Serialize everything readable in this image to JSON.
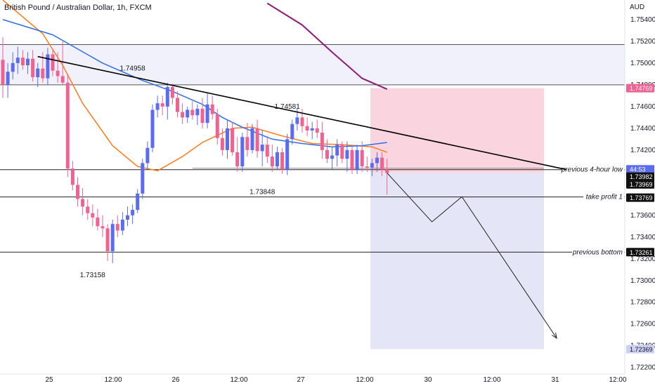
{
  "chart_data": {
    "type": "candlestick",
    "title": "British Pound / Australian Dollar, 1h, FXCM",
    "currency": "AUD",
    "ylim": [
      1.7214,
      1.7558
    ],
    "y_ticks": [
      "1.75400",
      "1.75200",
      "1.75000",
      "1.74800",
      "1.74600",
      "1.74400",
      "1.74200",
      "1.73600",
      "1.73400",
      "1.73200",
      "1.73000",
      "1.72800",
      "1.72600",
      "1.72400",
      "1.72200"
    ],
    "x_ticks": [
      "25",
      "12:00",
      "26",
      "12:00",
      "27",
      "12:00",
      "30",
      "12:00",
      "31",
      "12:00"
    ],
    "colors": {
      "up": "#5b6cf0",
      "down": "#f06292",
      "ma_fast": "#2f6fe6",
      "ma_slow": "#ff7a1a",
      "ma_long": "#8e1c7a",
      "trendline": "#000000",
      "stop_zone": "#f8c6d4",
      "target_zone": "#dcdcf6",
      "resistance_zone": "#e6e6f8"
    },
    "candles": [
      [
        1.7503,
        1.7524,
        1.7468,
        1.748
      ],
      [
        1.748,
        1.75,
        1.7468,
        1.7492
      ],
      [
        1.7492,
        1.751,
        1.7485,
        1.75
      ],
      [
        1.75,
        1.7515,
        1.749,
        1.7505
      ],
      [
        1.7505,
        1.7512,
        1.7494,
        1.7498
      ],
      [
        1.7498,
        1.751,
        1.749,
        1.7504
      ],
      [
        1.7504,
        1.7512,
        1.7483,
        1.7487
      ],
      [
        1.7487,
        1.75,
        1.7478,
        1.7495
      ],
      [
        1.7495,
        1.751,
        1.7482,
        1.7486
      ],
      [
        1.7486,
        1.7514,
        1.748,
        1.7508
      ],
      [
        1.7508,
        1.7512,
        1.7488,
        1.7493
      ],
      [
        1.7493,
        1.751,
        1.7482,
        1.7488
      ],
      [
        1.7488,
        1.752,
        1.748,
        1.7482
      ],
      [
        1.7482,
        1.749,
        1.7395,
        1.7403
      ],
      [
        1.7403,
        1.741,
        1.7383,
        1.7388
      ],
      [
        1.7388,
        1.7395,
        1.7368,
        1.7375
      ],
      [
        1.7375,
        1.7385,
        1.736,
        1.7368
      ],
      [
        1.7368,
        1.7375,
        1.7356,
        1.7362
      ],
      [
        1.7362,
        1.737,
        1.735,
        1.7358
      ],
      [
        1.7358,
        1.7366,
        1.7346,
        1.735
      ],
      [
        1.735,
        1.736,
        1.734,
        1.7348
      ],
      [
        1.7348,
        1.7352,
        1.7318,
        1.7327
      ],
      [
        1.7327,
        1.7356,
        1.7316,
        1.7352
      ],
      [
        1.7352,
        1.736,
        1.734,
        1.7346
      ],
      [
        1.7346,
        1.7363,
        1.7342,
        1.7356
      ],
      [
        1.7356,
        1.7368,
        1.735,
        1.736
      ],
      [
        1.736,
        1.737,
        1.7352,
        1.7365
      ],
      [
        1.7365,
        1.7384,
        1.7362,
        1.738
      ],
      [
        1.738,
        1.7412,
        1.7375,
        1.7408
      ],
      [
        1.7408,
        1.7428,
        1.7402,
        1.7422
      ],
      [
        1.7422,
        1.7462,
        1.7418,
        1.7457
      ],
      [
        1.7457,
        1.747,
        1.745,
        1.7463
      ],
      [
        1.7463,
        1.747,
        1.7452,
        1.746
      ],
      [
        1.746,
        1.7482,
        1.7448,
        1.7478
      ],
      [
        1.7478,
        1.7481,
        1.7462,
        1.7468
      ],
      [
        1.7468,
        1.7474,
        1.745,
        1.7455
      ],
      [
        1.7455,
        1.7463,
        1.7444,
        1.745
      ],
      [
        1.745,
        1.746,
        1.7445,
        1.7457
      ],
      [
        1.7457,
        1.7465,
        1.7448,
        1.7452
      ],
      [
        1.7452,
        1.7462,
        1.7443,
        1.7458
      ],
      [
        1.7458,
        1.7468,
        1.744,
        1.7445
      ],
      [
        1.7445,
        1.7473,
        1.744,
        1.7462
      ],
      [
        1.7462,
        1.747,
        1.7448,
        1.7453
      ],
      [
        1.7453,
        1.7458,
        1.7425,
        1.7431
      ],
      [
        1.7431,
        1.744,
        1.7415,
        1.742
      ],
      [
        1.742,
        1.7448,
        1.7412,
        1.744
      ],
      [
        1.744,
        1.7446,
        1.7415,
        1.7418
      ],
      [
        1.7418,
        1.7432,
        1.74,
        1.7405
      ],
      [
        1.7405,
        1.7436,
        1.74,
        1.7432
      ],
      [
        1.7432,
        1.7445,
        1.7414,
        1.742
      ],
      [
        1.742,
        1.7444,
        1.7417,
        1.744
      ],
      [
        1.744,
        1.7448,
        1.7413,
        1.7419
      ],
      [
        1.7419,
        1.7438,
        1.7405,
        1.7425
      ],
      [
        1.7425,
        1.7433,
        1.7408,
        1.7414
      ],
      [
        1.7414,
        1.7425,
        1.74,
        1.7405
      ],
      [
        1.7405,
        1.7423,
        1.7402,
        1.7418
      ],
      [
        1.7418,
        1.7422,
        1.7398,
        1.7402
      ],
      [
        1.7402,
        1.7435,
        1.7397,
        1.743
      ],
      [
        1.743,
        1.7448,
        1.7425,
        1.7444
      ],
      [
        1.7444,
        1.7458,
        1.7438,
        1.745
      ],
      [
        1.745,
        1.7458,
        1.7436,
        1.7442
      ],
      [
        1.7442,
        1.745,
        1.7433,
        1.7438
      ],
      [
        1.7438,
        1.7446,
        1.743,
        1.744
      ],
      [
        1.744,
        1.7448,
        1.7431,
        1.7436
      ],
      [
        1.7436,
        1.7446,
        1.7412,
        1.742
      ],
      [
        1.742,
        1.743,
        1.7408,
        1.7412
      ],
      [
        1.7412,
        1.7423,
        1.7402,
        1.7415
      ],
      [
        1.7415,
        1.743,
        1.7405,
        1.7425
      ],
      [
        1.7425,
        1.7428,
        1.7408,
        1.7412
      ],
      [
        1.7412,
        1.7428,
        1.74,
        1.742
      ],
      [
        1.742,
        1.7425,
        1.7398,
        1.7402
      ],
      [
        1.7402,
        1.7425,
        1.7398,
        1.742
      ],
      [
        1.742,
        1.7428,
        1.74,
        1.7405
      ],
      [
        1.7405,
        1.7414,
        1.74,
        1.7404
      ],
      [
        1.7404,
        1.7412,
        1.7396,
        1.7408
      ],
      [
        1.7408,
        1.7418,
        1.74,
        1.7413
      ],
      [
        1.7413,
        1.7418,
        1.7396,
        1.7402
      ],
      [
        1.7402,
        1.7412,
        1.7379,
        1.7399
      ]
    ],
    "ma_fast": [
      [
        0,
        1.754
      ],
      [
        10,
        1.7526
      ],
      [
        20,
        1.75
      ],
      [
        28,
        1.7484
      ],
      [
        34,
        1.7474
      ],
      [
        40,
        1.7462
      ],
      [
        44,
        1.745
      ],
      [
        48,
        1.7441
      ],
      [
        54,
        1.743
      ],
      [
        60,
        1.7426
      ],
      [
        66,
        1.7423
      ],
      [
        72,
        1.7424
      ],
      [
        77,
        1.7427
      ]
    ],
    "ma_slow": [
      [
        0,
        1.7558
      ],
      [
        8,
        1.7527
      ],
      [
        12,
        1.7498
      ],
      [
        16,
        1.7463
      ],
      [
        22,
        1.7424
      ],
      [
        27,
        1.7405
      ],
      [
        31,
        1.7401
      ],
      [
        36,
        1.7414
      ],
      [
        40,
        1.7427
      ],
      [
        46,
        1.744
      ],
      [
        50,
        1.7441
      ],
      [
        56,
        1.7433
      ],
      [
        62,
        1.7426
      ],
      [
        68,
        1.7425
      ],
      [
        74,
        1.7423
      ],
      [
        77,
        1.7418
      ]
    ],
    "ma_long": [
      [
        53,
        1.7555
      ],
      [
        60,
        1.7535
      ],
      [
        66,
        1.751
      ],
      [
        72,
        1.7486
      ],
      [
        77,
        1.7476
      ]
    ],
    "trendline": [
      [
        7,
        1.7506
      ],
      [
        113,
        1.7402
      ]
    ],
    "resistance_zone": [
      1.7517,
      1.748
    ],
    "prev_4h_low": 1.7402,
    "take_profit": 1.73769,
    "prev_bottom": 1.73261,
    "stop_level": 1.74769,
    "target_level": 1.72369,
    "projection": [
      [
        77,
        1.7399
      ],
      [
        86,
        1.7354
      ],
      [
        92,
        1.7377
      ],
      [
        111,
        1.7247
      ]
    ],
    "annotations": [
      {
        "text": "1.74958",
        "x": 26,
        "y": 1.7495
      },
      {
        "text": "1.74581",
        "x": 57,
        "y": 1.746
      },
      {
        "text": "1.73848",
        "x": 52,
        "y": 1.73815
      },
      {
        "text": "1.73158",
        "x": 18,
        "y": 1.7305
      }
    ],
    "price_tags": [
      {
        "value": "1.74769",
        "bg": "#f06292",
        "fg": "#ffffff"
      },
      {
        "value": "44:53",
        "bg": "#5b6cf0",
        "fg": "#ffffff"
      },
      {
        "value": "1.73982",
        "bg": "#111111",
        "fg": "#ffffff"
      },
      {
        "value": "1.73969",
        "bg": "#111111",
        "fg": "#ffffff"
      },
      {
        "value": "1.73769",
        "bg": "#111111",
        "fg": "#ffffff"
      },
      {
        "value": "1.73261",
        "bg": "#111111",
        "fg": "#ffffff"
      },
      {
        "value": "1.72369",
        "bg": "#cdd0f4",
        "fg": "#131722"
      }
    ],
    "labels": {
      "prev_4h_low": "previous 4-hour low",
      "take_profit": "take profit 1",
      "prev_bottom": "previous bottom"
    }
  }
}
